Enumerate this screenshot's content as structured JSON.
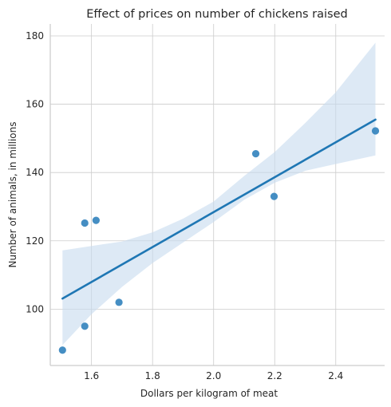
{
  "chart_data": {
    "type": "scatter",
    "title": "Effect of prices on number of chickens raised",
    "xlabel": "Dollars per kilogram of meat",
    "ylabel": "Number of animals, in millions",
    "xlim": [
      1.465,
      2.56
    ],
    "ylim": [
      83.5,
      183.5
    ],
    "xticks": [
      1.6,
      1.8,
      2.0,
      2.2,
      2.4
    ],
    "yticks": [
      100,
      120,
      140,
      160,
      180
    ],
    "grid": true,
    "points": [
      {
        "x": 1.505,
        "y": 88
      },
      {
        "x": 1.578,
        "y": 95
      },
      {
        "x": 1.578,
        "y": 125.2
      },
      {
        "x": 1.615,
        "y": 126
      },
      {
        "x": 1.69,
        "y": 102
      },
      {
        "x": 2.138,
        "y": 145.5
      },
      {
        "x": 2.198,
        "y": 133
      },
      {
        "x": 2.53,
        "y": 152.2
      }
    ],
    "regression_line": {
      "x": [
        1.505,
        2.53
      ],
      "y": [
        103.1,
        155.5
      ]
    },
    "confidence_band": {
      "x": [
        1.505,
        1.6,
        1.7,
        1.8,
        1.9,
        2.0,
        2.1,
        2.2,
        2.3,
        2.4,
        2.53
      ],
      "lower": [
        89.5,
        98.5,
        106.5,
        113.5,
        119.5,
        125.5,
        132,
        137,
        140.5,
        142.5,
        145
      ],
      "upper": [
        117.2,
        118.5,
        119.8,
        122.5,
        126.5,
        131.5,
        139,
        146,
        154.5,
        163.5,
        178
      ]
    },
    "colors": {
      "points": "#3182bd",
      "line": "#1f77b4",
      "band": "#c6dbef"
    }
  }
}
